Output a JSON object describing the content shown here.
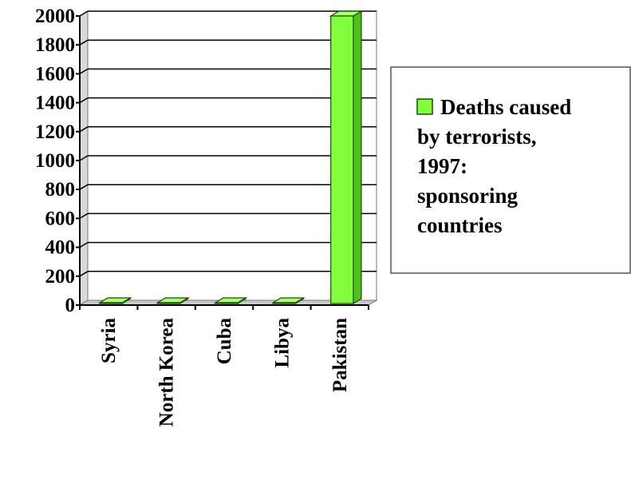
{
  "chart_data": {
    "type": "bar",
    "categories": [
      "Syria",
      "North Korea",
      "Cuba",
      "Libya",
      "Pakistan"
    ],
    "series": [
      {
        "name": "Deaths caused by terrorists, 1997: sponsoring countries",
        "values": [
          0,
          0,
          0,
          0,
          2000
        ],
        "color": "#80ff3a"
      }
    ],
    "ylim": [
      0,
      2000
    ],
    "yticks": [
      0,
      200,
      400,
      600,
      800,
      1000,
      1200,
      1400,
      1600,
      1800,
      2000
    ],
    "grid": true,
    "legend": {
      "position": "right",
      "lines": [
        "Deaths caused",
        "by terrorists,",
        "1997:",
        "sponsoring",
        "countries"
      ]
    },
    "title": "",
    "xlabel": "",
    "ylabel": ""
  }
}
